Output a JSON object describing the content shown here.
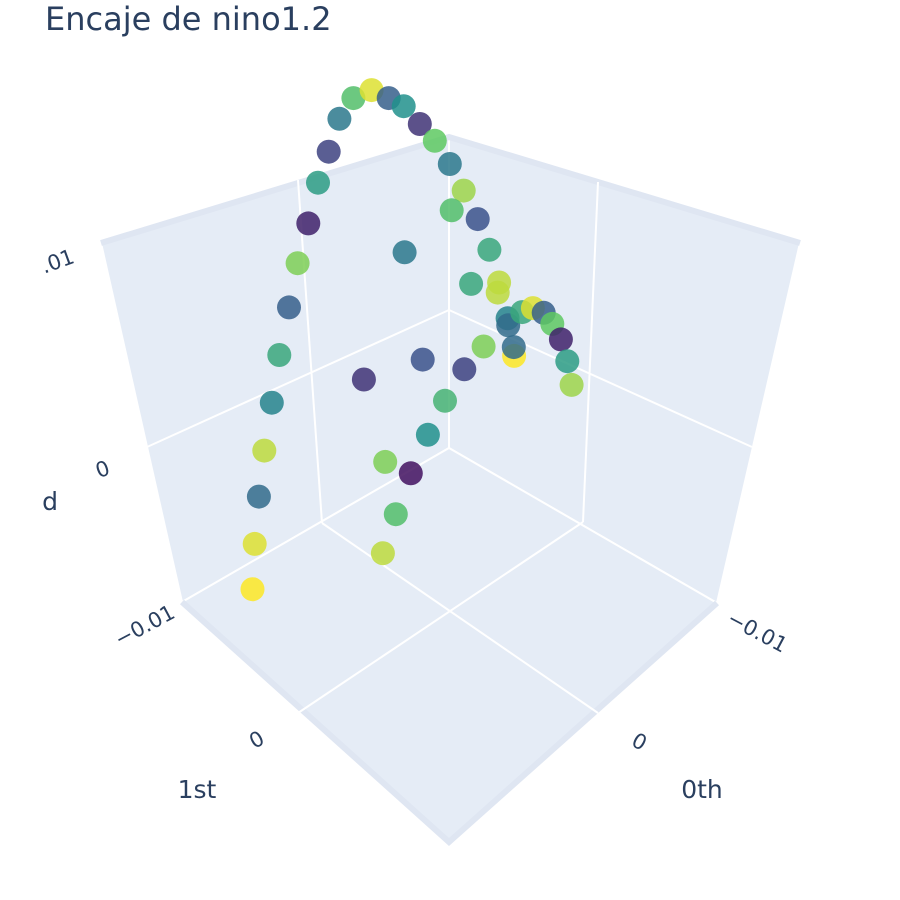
{
  "title": "Encaje de nino1.2",
  "chart_data": {
    "type": "scatter3d",
    "title": "Encaje de nino1.2",
    "axes": {
      "x": {
        "title": "0th",
        "ticks": [
          "−0.01",
          "0"
        ],
        "range": [
          -0.0125,
          0.0125
        ]
      },
      "y": {
        "title": "1st",
        "ticks": [
          "−0.01",
          "0"
        ],
        "range": [
          -0.0125,
          0.0125
        ]
      },
      "z": {
        "title": "d",
        "ticks": [
          "−0.01",
          "0",
          ".01"
        ],
        "range": [
          -0.01,
          0.01
        ]
      }
    },
    "colorscale": [
      "#440154",
      "#3b528b",
      "#21918c",
      "#5ec962",
      "#fde725"
    ],
    "background": "#e5ecf6",
    "grid": true,
    "marker": "circle",
    "legend": "none",
    "notes_points": "approximate projected samples",
    "points": [
      [
        0.0,
        -0.009,
        0.009,
        0.7
      ],
      [
        0.0015,
        -0.0088,
        0.0088,
        0.4
      ],
      [
        0.0028,
        -0.0085,
        0.008,
        0.2
      ],
      [
        0.004,
        -0.0083,
        0.0072,
        0.55
      ],
      [
        0.0052,
        -0.008,
        0.006,
        0.1
      ],
      [
        0.0064,
        -0.0078,
        0.0048,
        0.8
      ],
      [
        0.0075,
        -0.0075,
        0.0034,
        0.3
      ],
      [
        0.0086,
        -0.0073,
        0.0018,
        0.6
      ],
      [
        0.0096,
        -0.007,
        0.0002,
        0.45
      ],
      [
        0.0105,
        -0.0068,
        -0.0015,
        0.9
      ],
      [
        0.0112,
        -0.0066,
        -0.0032,
        0.35
      ],
      [
        0.0118,
        -0.0064,
        -0.005,
        0.95
      ],
      [
        0.0122,
        -0.0062,
        -0.0068,
        1.0
      ],
      [
        -0.0015,
        -0.0088,
        0.0088,
        0.95
      ],
      [
        -0.0028,
        -0.0085,
        0.008,
        0.3
      ],
      [
        -0.004,
        -0.0083,
        0.0072,
        0.5
      ],
      [
        -0.0052,
        -0.008,
        0.006,
        0.15
      ],
      [
        -0.0064,
        -0.0078,
        0.0048,
        0.75
      ],
      [
        -0.0075,
        -0.0075,
        0.0034,
        0.4
      ],
      [
        -0.0086,
        -0.0073,
        0.0018,
        0.85
      ],
      [
        -0.0096,
        -0.007,
        0.0002,
        0.25
      ],
      [
        -0.0105,
        -0.0068,
        -0.0015,
        0.6
      ],
      [
        -0.0112,
        -0.0066,
        -0.0032,
        0.9
      ],
      [
        -0.0118,
        -0.0064,
        -0.005,
        0.45
      ],
      [
        -0.0122,
        -0.0062,
        -0.0068,
        1.0
      ],
      [
        0.0,
        0.0055,
        0.005,
        0.35
      ],
      [
        0.0018,
        0.005,
        0.0046,
        0.8
      ],
      [
        0.0032,
        0.0046,
        0.004,
        0.2
      ],
      [
        0.0046,
        0.0042,
        0.003,
        0.65
      ],
      [
        0.0058,
        0.0038,
        0.0018,
        0.5
      ],
      [
        0.007,
        0.0034,
        0.0004,
        0.05
      ],
      [
        0.008,
        0.003,
        -0.0012,
        0.7
      ],
      [
        0.0088,
        0.0026,
        -0.0028,
        0.9
      ],
      [
        -0.0018,
        0.005,
        0.0046,
        0.6
      ],
      [
        -0.0032,
        0.0046,
        0.004,
        0.95
      ],
      [
        -0.0046,
        0.0042,
        0.003,
        0.3
      ],
      [
        -0.0058,
        0.0038,
        0.0018,
        0.75
      ],
      [
        -0.007,
        0.0034,
        0.0004,
        0.1
      ],
      [
        -0.008,
        0.003,
        -0.0012,
        0.55
      ],
      [
        -0.0088,
        0.0026,
        -0.0028,
        0.85
      ],
      [
        0.0022,
        -0.002,
        0.006,
        0.4
      ],
      [
        -0.0022,
        -0.002,
        0.006,
        0.7
      ],
      [
        0.0035,
        0.001,
        0.003,
        0.25
      ],
      [
        -0.0035,
        0.001,
        0.003,
        0.9
      ],
      [
        0.005,
        -0.003,
        0.001,
        0.15
      ],
      [
        -0.005,
        -0.003,
        0.001,
        0.6
      ],
      [
        0.006,
        0.0,
        -0.001,
        0.8
      ],
      [
        -0.006,
        0.0,
        -0.001,
        0.35
      ]
    ]
  }
}
